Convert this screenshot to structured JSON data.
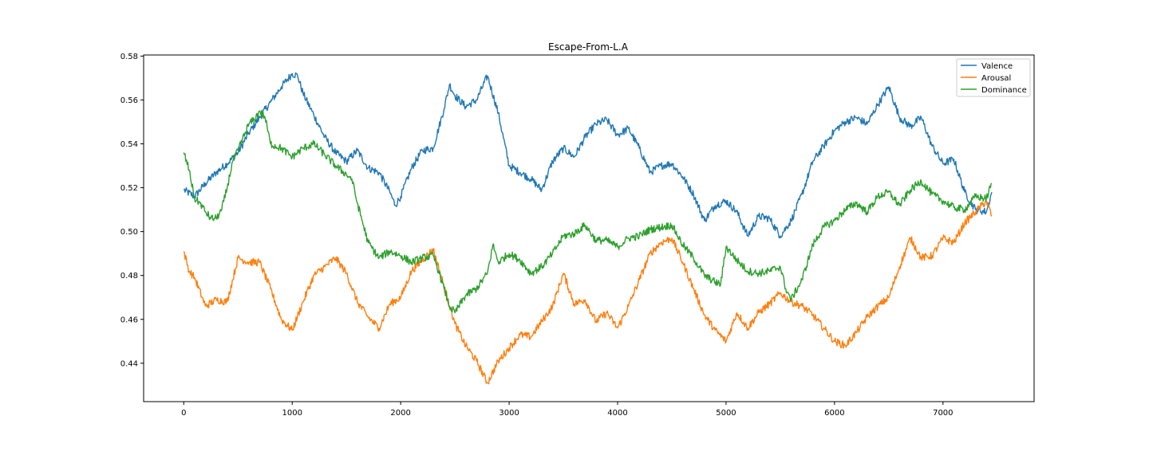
{
  "chart_data": {
    "type": "line",
    "title": "Escape-From-L.A",
    "xlabel": "",
    "ylabel": "",
    "xlim": [
      -370,
      7840
    ],
    "ylim": [
      0.4225,
      0.5805
    ],
    "x_ticks": [
      0,
      1000,
      2000,
      3000,
      4000,
      5000,
      6000,
      7000
    ],
    "x_tick_labels": [
      "0",
      "1000",
      "2000",
      "3000",
      "4000",
      "5000",
      "6000",
      "7000"
    ],
    "y_ticks": [
      0.44,
      0.46,
      0.48,
      0.5,
      0.52,
      0.54,
      0.56,
      0.58
    ],
    "y_tick_labels": [
      "0.44",
      "0.46",
      "0.48",
      "0.50",
      "0.52",
      "0.54",
      "0.56",
      "0.58"
    ],
    "grid": false,
    "legend_position": "top-right",
    "series": [
      {
        "name": "Valence",
        "color": "#1f77b4",
        "x": [
          0,
          100,
          200,
          300,
          400,
          500,
          600,
          700,
          800,
          900,
          1000,
          1050,
          1100,
          1200,
          1300,
          1400,
          1500,
          1600,
          1700,
          1800,
          1900,
          1950,
          2000,
          2100,
          2200,
          2300,
          2400,
          2450,
          2500,
          2600,
          2700,
          2800,
          2900,
          3000,
          3100,
          3200,
          3300,
          3400,
          3500,
          3600,
          3700,
          3800,
          3900,
          4000,
          4100,
          4200,
          4300,
          4400,
          4500,
          4600,
          4700,
          4800,
          4900,
          5000,
          5100,
          5200,
          5300,
          5400,
          5500,
          5600,
          5700,
          5800,
          5900,
          6000,
          6100,
          6200,
          6300,
          6400,
          6500,
          6600,
          6700,
          6800,
          6900,
          7000,
          7100,
          7200,
          7300,
          7400,
          7450
        ],
        "values": [
          0.519,
          0.516,
          0.522,
          0.527,
          0.531,
          0.536,
          0.545,
          0.552,
          0.559,
          0.566,
          0.572,
          0.571,
          0.563,
          0.553,
          0.543,
          0.536,
          0.532,
          0.537,
          0.529,
          0.527,
          0.518,
          0.512,
          0.516,
          0.529,
          0.537,
          0.538,
          0.556,
          0.567,
          0.562,
          0.557,
          0.56,
          0.571,
          0.554,
          0.53,
          0.527,
          0.524,
          0.519,
          0.532,
          0.538,
          0.534,
          0.543,
          0.549,
          0.551,
          0.544,
          0.547,
          0.538,
          0.527,
          0.53,
          0.531,
          0.525,
          0.517,
          0.505,
          0.512,
          0.514,
          0.509,
          0.498,
          0.507,
          0.506,
          0.498,
          0.505,
          0.517,
          0.532,
          0.539,
          0.546,
          0.55,
          0.552,
          0.549,
          0.558,
          0.566,
          0.552,
          0.548,
          0.552,
          0.539,
          0.531,
          0.533,
          0.518,
          0.51,
          0.509,
          0.518
        ]
      },
      {
        "name": "Arousal",
        "color": "#ff7f0e",
        "x": [
          0,
          50,
          100,
          200,
          300,
          400,
          500,
          600,
          700,
          800,
          900,
          1000,
          1100,
          1200,
          1300,
          1400,
          1500,
          1600,
          1700,
          1800,
          1900,
          2000,
          2100,
          2200,
          2300,
          2400,
          2500,
          2600,
          2700,
          2800,
          2900,
          3000,
          3100,
          3200,
          3300,
          3400,
          3500,
          3600,
          3700,
          3800,
          3900,
          4000,
          4100,
          4200,
          4300,
          4400,
          4500,
          4600,
          4700,
          4800,
          4900,
          5000,
          5100,
          5200,
          5300,
          5400,
          5500,
          5600,
          5700,
          5800,
          5900,
          6000,
          6100,
          6200,
          6300,
          6400,
          6500,
          6600,
          6700,
          6800,
          6900,
          7000,
          7100,
          7200,
          7300,
          7400,
          7450
        ],
        "values": [
          0.491,
          0.482,
          0.479,
          0.466,
          0.469,
          0.468,
          0.488,
          0.486,
          0.486,
          0.474,
          0.46,
          0.455,
          0.468,
          0.48,
          0.484,
          0.488,
          0.481,
          0.468,
          0.461,
          0.456,
          0.467,
          0.47,
          0.482,
          0.487,
          0.492,
          0.475,
          0.458,
          0.448,
          0.441,
          0.431,
          0.441,
          0.447,
          0.453,
          0.452,
          0.459,
          0.466,
          0.481,
          0.467,
          0.469,
          0.459,
          0.463,
          0.456,
          0.466,
          0.478,
          0.49,
          0.495,
          0.497,
          0.486,
          0.474,
          0.462,
          0.455,
          0.45,
          0.463,
          0.456,
          0.463,
          0.467,
          0.472,
          0.468,
          0.466,
          0.462,
          0.456,
          0.45,
          0.448,
          0.454,
          0.461,
          0.466,
          0.47,
          0.484,
          0.497,
          0.488,
          0.489,
          0.497,
          0.495,
          0.504,
          0.509,
          0.514,
          0.507
        ]
      },
      {
        "name": "Dominance",
        "color": "#2ca02c",
        "x": [
          0,
          50,
          100,
          150,
          200,
          250,
          300,
          350,
          400,
          450,
          500,
          600,
          650,
          700,
          750,
          800,
          900,
          1000,
          1100,
          1200,
          1300,
          1400,
          1500,
          1550,
          1600,
          1700,
          1800,
          1900,
          2000,
          2100,
          2200,
          2300,
          2350,
          2400,
          2450,
          2500,
          2600,
          2700,
          2800,
          2850,
          2900,
          3000,
          3100,
          3200,
          3300,
          3400,
          3500,
          3600,
          3700,
          3800,
          3900,
          4000,
          4100,
          4200,
          4300,
          4400,
          4500,
          4600,
          4700,
          4800,
          4900,
          4950,
          5000,
          5100,
          5200,
          5300,
          5400,
          5500,
          5550,
          5600,
          5700,
          5800,
          5900,
          6000,
          6100,
          6200,
          6300,
          6400,
          6500,
          6600,
          6700,
          6800,
          6900,
          7000,
          7100,
          7200,
          7300,
          7400,
          7450
        ],
        "values": [
          0.536,
          0.528,
          0.515,
          0.513,
          0.509,
          0.506,
          0.506,
          0.51,
          0.52,
          0.532,
          0.537,
          0.549,
          0.551,
          0.555,
          0.552,
          0.54,
          0.538,
          0.534,
          0.538,
          0.54,
          0.535,
          0.53,
          0.526,
          0.524,
          0.513,
          0.495,
          0.488,
          0.491,
          0.489,
          0.486,
          0.488,
          0.489,
          0.482,
          0.474,
          0.466,
          0.463,
          0.471,
          0.474,
          0.481,
          0.494,
          0.486,
          0.49,
          0.487,
          0.481,
          0.484,
          0.49,
          0.498,
          0.499,
          0.503,
          0.496,
          0.496,
          0.493,
          0.497,
          0.498,
          0.501,
          0.502,
          0.503,
          0.494,
          0.488,
          0.48,
          0.477,
          0.476,
          0.493,
          0.487,
          0.482,
          0.481,
          0.482,
          0.484,
          0.474,
          0.469,
          0.478,
          0.494,
          0.502,
          0.505,
          0.51,
          0.513,
          0.509,
          0.516,
          0.518,
          0.512,
          0.519,
          0.523,
          0.517,
          0.514,
          0.511,
          0.51,
          0.516,
          0.515,
          0.522
        ]
      }
    ]
  }
}
